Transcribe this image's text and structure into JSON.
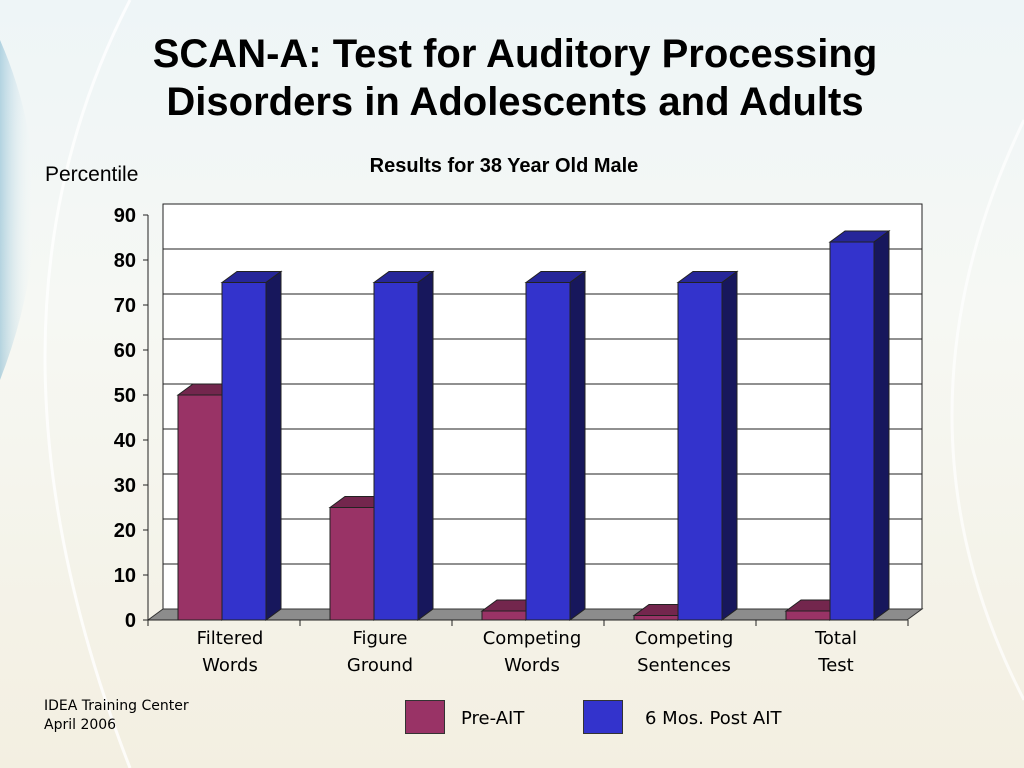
{
  "slide": {
    "title_line1": "SCAN-A: Test for Auditory Processing",
    "title_line2": "Disorders in Adolescents and Adults",
    "footer_line1": "IDEA Training Center",
    "footer_line2": "April 2006"
  },
  "chart_data": {
    "type": "bar",
    "subtitle": "Results for 38 Year Old Male",
    "ylabel": "Percentile",
    "xlabel": "",
    "ylim": [
      0,
      90
    ],
    "yticks": [
      0,
      10,
      20,
      30,
      40,
      50,
      60,
      70,
      80,
      90
    ],
    "grid": true,
    "three_d": true,
    "legend_position": "bottom",
    "categories": [
      [
        "Filtered",
        "Words"
      ],
      [
        "Figure",
        "Ground"
      ],
      [
        "Competing",
        "Words"
      ],
      [
        "Competing",
        "Sentences"
      ],
      [
        "Total",
        "Test"
      ]
    ],
    "series": [
      {
        "name": "Pre-AIT",
        "values": [
          50,
          25,
          2,
          1,
          2
        ],
        "color": "#993366"
      },
      {
        "name": "6 Mos. Post AIT",
        "values": [
          75,
          75,
          75,
          75,
          84
        ],
        "color": "#3333cc"
      }
    ]
  }
}
